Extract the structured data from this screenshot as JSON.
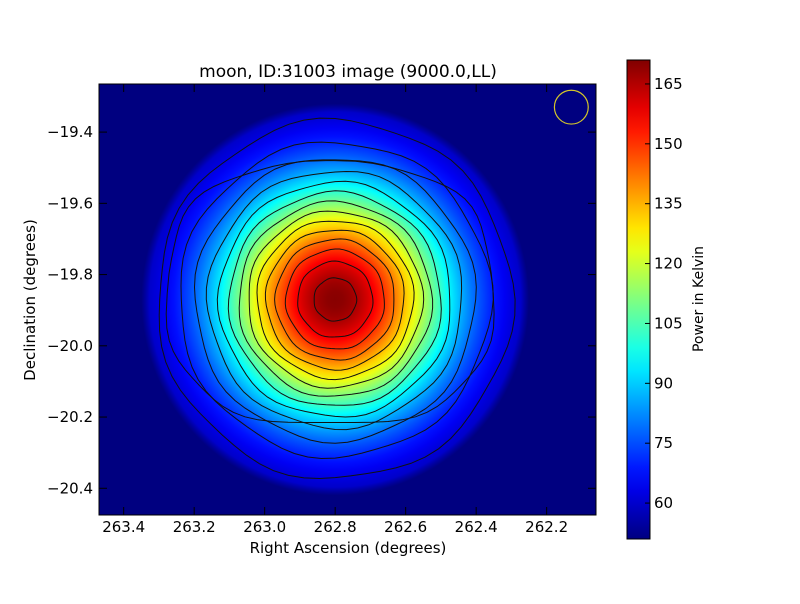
{
  "chart_data": {
    "type": "heatmap",
    "title": "moon, ID:31003 image (9000.0,LL)",
    "xlabel": "Right Ascension (degrees)",
    "ylabel": "Declination (degrees)",
    "colorbar_label": "Power in Kelvin",
    "xlim": [
      263.47,
      262.06
    ],
    "ylim": [
      -20.475,
      -19.265
    ],
    "x_ticks": [
      263.4,
      263.2,
      263.0,
      262.8,
      262.6,
      262.4,
      262.2
    ],
    "x_tick_labels": [
      "263.4",
      "263.2",
      "263.0",
      "262.8",
      "262.6",
      "262.4",
      "262.2"
    ],
    "y_ticks": [
      -19.4,
      -19.6,
      -19.8,
      -20.0,
      -20.2,
      -20.4
    ],
    "y_tick_labels": [
      "−19.4",
      "−19.6",
      "−19.8",
      "−20.0",
      "−20.2",
      "−20.4"
    ],
    "colorbar_range": [
      51,
      171
    ],
    "colorbar_ticks": [
      60,
      75,
      90,
      105,
      120,
      135,
      150,
      165
    ],
    "colorbar_tick_labels": [
      "60",
      "75",
      "90",
      "105",
      "120",
      "135",
      "150",
      "165"
    ],
    "colormap": "jet",
    "source": {
      "ra": 262.8,
      "dec": -19.87,
      "peak_K": 170,
      "background_K": 51
    },
    "contour_levels": [
      55,
      62,
      70,
      78,
      86,
      94,
      102,
      110,
      118,
      126,
      134,
      142,
      150,
      158,
      166
    ],
    "beam": {
      "ra": 262.13,
      "dec": -19.33,
      "radius_deg": 0.048,
      "color": "#d4c62a"
    },
    "grid": false
  }
}
